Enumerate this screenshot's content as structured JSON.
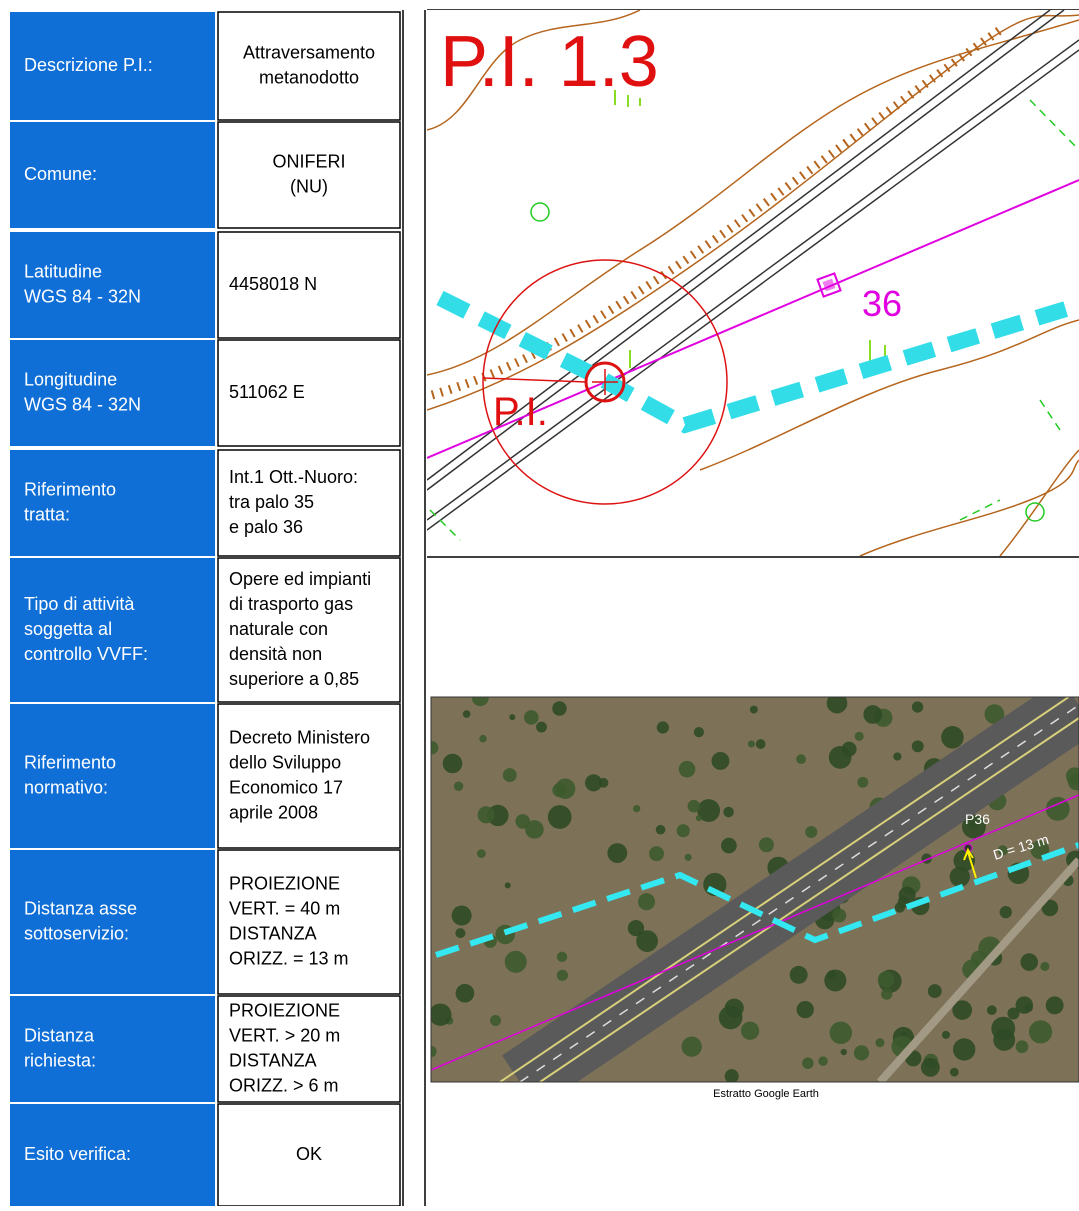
{
  "table": {
    "rows": [
      {
        "label": [
          "Descrizione P.I.:"
        ],
        "value": [
          "Attraversamento",
          "metanodotto"
        ]
      },
      {
        "label": [
          "Comune:"
        ],
        "value": [
          "ONIFERI",
          "(NU)"
        ]
      },
      {
        "label": [
          "Latitudine",
          "WGS 84 - 32N"
        ],
        "value": [
          "4458018 N"
        ]
      },
      {
        "label": [
          "Longitudine",
          "WGS 84 - 32N"
        ],
        "value": [
          "511062 E"
        ]
      },
      {
        "label": [
          "Riferimento",
          "tratta:"
        ],
        "value": [
          "Int.1 Ott.-Nuoro:",
          "tra palo 35",
          "e palo 36"
        ]
      },
      {
        "label": [
          "Tipo di attività",
          "soggetta al",
          "controllo VVFF:"
        ],
        "value": [
          "Opere ed impianti",
          "di trasporto gas",
          "naturale con",
          "densità non",
          "superiore a 0,85"
        ]
      },
      {
        "label": [
          "Riferimento",
          "normativo:"
        ],
        "value": [
          "Decreto Ministero",
          "dello Sviluppo",
          "Economico 17",
          "aprile 2008"
        ]
      },
      {
        "label": [
          "Distanza asse",
          "sottoservizio:"
        ],
        "value": [
          "PROIEZIONE",
          "VERT. = 40 m",
          "DISTANZA",
          "ORIZZ. = 13 m"
        ]
      },
      {
        "label": [
          "Distanza",
          "richiesta:"
        ],
        "value": [
          "PROIEZIONE",
          "VERT. > 20 m",
          "DISTANZA",
          "ORIZZ. > 6 m"
        ]
      },
      {
        "label": [
          "Esito verifica:"
        ],
        "value": [
          "OK"
        ]
      }
    ]
  },
  "map": {
    "title": "P.I. 1.3",
    "point_label": "P.I.",
    "pole_label": "36"
  },
  "satellite": {
    "pole_label": "P36",
    "distance_label": "D = 13 m",
    "caption": "Estratto Google Earth"
  }
}
